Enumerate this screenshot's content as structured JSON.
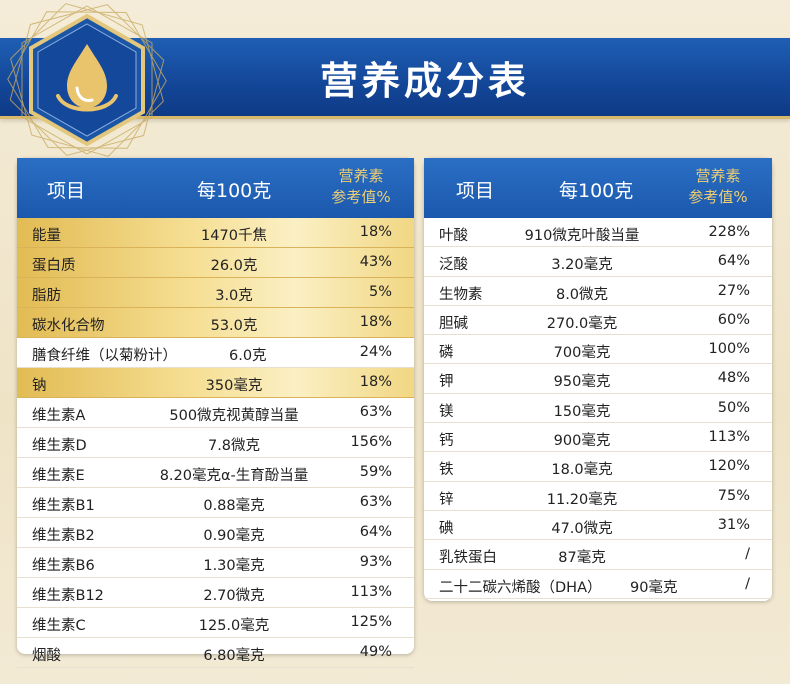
{
  "header": {
    "title": "营养成分表"
  },
  "colors": {
    "banner_blue": "#1b58ad",
    "gold": "#e2bb53",
    "header_accent": "#f0cf72"
  },
  "icons": {
    "emblem": "oil-drop-icon"
  },
  "tables": {
    "left": {
      "headers": {
        "item": "项目",
        "per100": "每100克",
        "nrv_line1": "营养素",
        "nrv_line2": "参考值%"
      },
      "rows": [
        {
          "name": "能量",
          "value": "1470千焦",
          "nrv": "18%",
          "highlight": true
        },
        {
          "name": "蛋白质",
          "value": "26.0克",
          "nrv": "43%",
          "highlight": true
        },
        {
          "name": "脂肪",
          "value": "3.0克",
          "nrv": "5%",
          "highlight": true
        },
        {
          "name": "碳水化合物",
          "value": "53.0克",
          "nrv": "18%",
          "highlight": true
        },
        {
          "name": "膳食纤维（以菊粉计）",
          "value": "6.0克",
          "nrv": "24%",
          "highlight": false
        },
        {
          "name": "钠",
          "value": "350毫克",
          "nrv": "18%",
          "highlight": true
        },
        {
          "name": "维生素A",
          "value": "500微克视黄醇当量",
          "nrv": "63%",
          "highlight": false
        },
        {
          "name": "维生素D",
          "value": "7.8微克",
          "nrv": "156%",
          "highlight": false
        },
        {
          "name": "维生素E",
          "value": "8.20毫克α-生育酚当量",
          "nrv": "59%",
          "highlight": false
        },
        {
          "name": "维生素B1",
          "value": "0.88毫克",
          "nrv": "63%",
          "highlight": false
        },
        {
          "name": "维生素B2",
          "value": "0.90毫克",
          "nrv": "64%",
          "highlight": false
        },
        {
          "name": "维生素B6",
          "value": "1.30毫克",
          "nrv": "93%",
          "highlight": false
        },
        {
          "name": "维生素B12",
          "value": "2.70微克",
          "nrv": "113%",
          "highlight": false
        },
        {
          "name": "维生素C",
          "value": "125.0毫克",
          "nrv": "125%",
          "highlight": false
        },
        {
          "name": "烟酸",
          "value": "6.80毫克",
          "nrv": "49%",
          "highlight": false
        }
      ]
    },
    "right": {
      "headers": {
        "item": "项目",
        "per100": "每100克",
        "nrv_line1": "营养素",
        "nrv_line2": "参考值%"
      },
      "rows": [
        {
          "name": "叶酸",
          "value": "910微克叶酸当量",
          "nrv": "228%"
        },
        {
          "name": "泛酸",
          "value": "3.20毫克",
          "nrv": "64%"
        },
        {
          "name": "生物素",
          "value": "8.0微克",
          "nrv": "27%"
        },
        {
          "name": "胆碱",
          "value": "270.0毫克",
          "nrv": "60%"
        },
        {
          "name": "磷",
          "value": "700毫克",
          "nrv": "100%"
        },
        {
          "name": "钾",
          "value": "950毫克",
          "nrv": "48%"
        },
        {
          "name": "镁",
          "value": "150毫克",
          "nrv": "50%"
        },
        {
          "name": "钙",
          "value": "900毫克",
          "nrv": "113%"
        },
        {
          "name": "铁",
          "value": "18.0毫克",
          "nrv": "120%"
        },
        {
          "name": "锌",
          "value": "11.20毫克",
          "nrv": "75%"
        },
        {
          "name": "碘",
          "value": "47.0微克",
          "nrv": "31%"
        },
        {
          "name": "乳铁蛋白",
          "value": "87毫克",
          "nrv": "/"
        },
        {
          "name": "二十二碳六烯酸（DHA）",
          "value": "90毫克",
          "nrv": "/"
        }
      ]
    }
  }
}
